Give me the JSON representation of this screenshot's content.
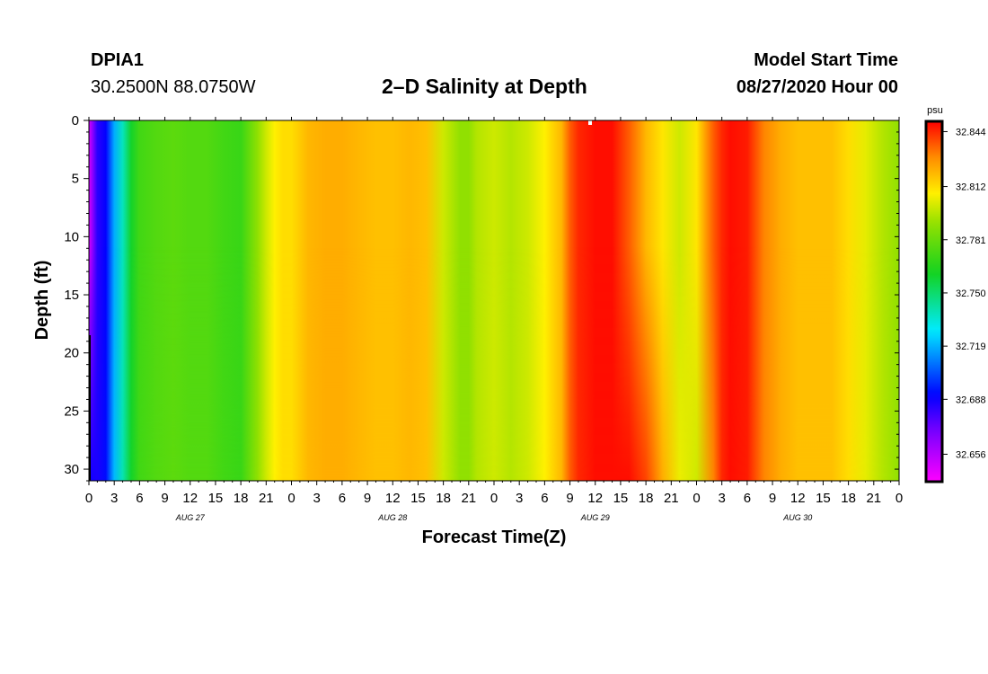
{
  "header": {
    "station": "DPIA1",
    "coordinates": "30.2500N 88.0750W",
    "title": "2–D Salinity at Depth",
    "model_start_label": "Model Start Time",
    "model_start_value": "08/27/2020 Hour 00"
  },
  "chart_data": {
    "type": "heatmap",
    "title": "2–D Salinity at Depth",
    "xlabel": "Forecast Time(Z)",
    "ylabel": "Depth (ft)",
    "x_hours_range": [
      0,
      96
    ],
    "x_tick_step_hours": 3,
    "x_tick_labels": [
      "0",
      "3",
      "6",
      "9",
      "12",
      "15",
      "18",
      "21",
      "0",
      "3",
      "6",
      "9",
      "12",
      "15",
      "18",
      "21",
      "0",
      "3",
      "6",
      "9",
      "12",
      "15",
      "18",
      "21",
      "0",
      "3",
      "6",
      "9",
      "12",
      "15",
      "18",
      "21",
      "0"
    ],
    "date_labels": [
      {
        "hour": 12,
        "label": "AUG 27"
      },
      {
        "hour": 36,
        "label": "AUG 28"
      },
      {
        "hour": 60,
        "label": "AUG 29"
      },
      {
        "hour": 84,
        "label": "AUG 30"
      }
    ],
    "y_range_ft": [
      0,
      31
    ],
    "y_ticks": [
      0,
      5,
      10,
      15,
      20,
      25,
      30
    ],
    "colorbar": {
      "unit": "psu",
      "min": 32.64,
      "max": 32.85,
      "ticks": [
        32.656,
        32.688,
        32.719,
        32.75,
        32.781,
        32.812,
        32.844
      ],
      "tick_labels": [
        "32.656",
        "32.688",
        "32.719",
        "32.750",
        "32.781",
        "32.812",
        "32.844"
      ]
    },
    "salinity_by_hour_psu": {
      "hours": [
        0,
        1,
        2,
        3,
        4,
        5,
        6,
        8,
        10,
        12,
        14,
        16,
        18,
        19,
        20,
        21,
        22,
        23,
        24,
        26,
        28,
        30,
        32,
        34,
        36,
        38,
        40,
        42,
        44,
        45,
        46,
        48,
        50,
        52,
        54,
        56,
        57,
        58,
        60,
        62,
        64,
        66,
        68,
        70,
        72,
        74,
        75,
        76,
        78,
        80,
        82,
        84,
        86,
        88,
        90,
        92,
        94,
        96
      ],
      "surface": [
        32.648,
        32.683,
        32.69,
        32.718,
        32.738,
        32.76,
        32.772,
        32.776,
        32.778,
        32.776,
        32.776,
        32.772,
        32.77,
        32.78,
        32.79,
        32.8,
        32.808,
        32.812,
        32.812,
        32.82,
        32.822,
        32.822,
        32.82,
        32.818,
        32.818,
        32.82,
        32.818,
        32.8,
        32.79,
        32.79,
        32.796,
        32.8,
        32.796,
        32.8,
        32.808,
        32.82,
        32.836,
        32.844,
        32.848,
        32.848,
        32.836,
        32.82,
        32.81,
        32.8,
        32.81,
        32.836,
        32.844,
        32.848,
        32.846,
        32.83,
        32.822,
        32.818,
        32.818,
        32.818,
        32.812,
        32.804,
        32.796,
        32.79
      ],
      "bottom": [
        32.688,
        32.686,
        32.692,
        32.72,
        32.74,
        32.76,
        32.772,
        32.776,
        32.778,
        32.776,
        32.776,
        32.772,
        32.77,
        32.78,
        32.79,
        32.8,
        32.808,
        32.812,
        32.812,
        32.82,
        32.822,
        32.822,
        32.82,
        32.818,
        32.818,
        32.82,
        32.818,
        32.8,
        32.79,
        32.79,
        32.796,
        32.8,
        32.796,
        32.8,
        32.808,
        32.82,
        32.836,
        32.844,
        32.848,
        32.848,
        32.848,
        32.84,
        32.822,
        32.805,
        32.8,
        32.83,
        32.844,
        32.848,
        32.846,
        32.83,
        32.822,
        32.818,
        32.818,
        32.818,
        32.812,
        32.804,
        32.796,
        32.79
      ]
    }
  }
}
